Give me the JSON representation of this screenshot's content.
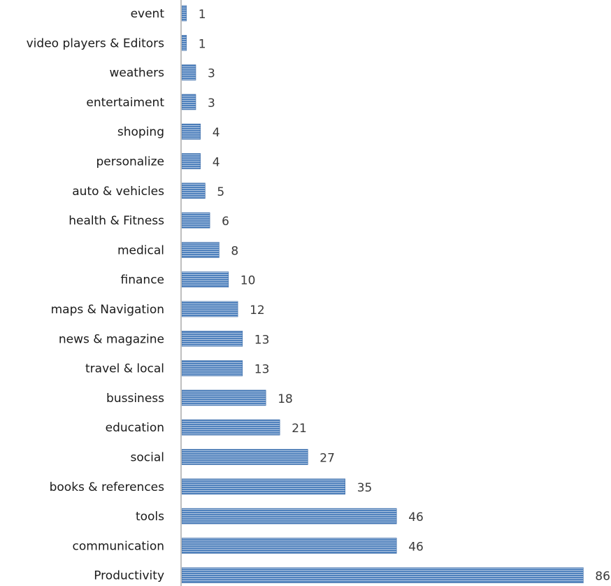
{
  "chart_data": {
    "type": "bar",
    "orientation": "horizontal",
    "categories": [
      "event",
      "video players & Editors",
      "weathers",
      "entertaiment",
      "shoping",
      "personalize",
      "auto & vehicles",
      "health & Fitness",
      "medical",
      "finance",
      "maps & Navigation",
      "news & magazine",
      "travel & local",
      "bussiness",
      "education",
      "social",
      "books & references",
      "tools",
      "communication",
      "Productivity"
    ],
    "values": [
      1,
      1,
      3,
      3,
      4,
      4,
      5,
      6,
      8,
      10,
      12,
      13,
      13,
      18,
      21,
      27,
      35,
      46,
      46,
      86
    ],
    "value_labels": [
      "1",
      "1",
      "3",
      "3",
      "4",
      "4",
      "5",
      "6",
      "8",
      "10",
      "12",
      "13",
      "13",
      "18",
      "21",
      "27",
      "35",
      "46",
      "46",
      "86"
    ],
    "xlim": [
      0,
      87
    ],
    "grid": false,
    "data_labels": true,
    "bar_fill": "#4f81bd",
    "bar_stripe": "#ffffff",
    "bar_border": "#3a6aa6",
    "axis_color": "#bfbfbf",
    "title": "",
    "xlabel": "",
    "ylabel": ""
  }
}
